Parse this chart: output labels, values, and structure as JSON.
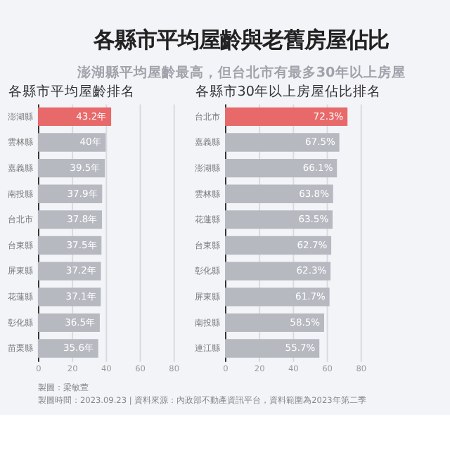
{
  "chart_data": [
    {
      "type": "other",
      "title": "各縣市平均屋齡與老舊房屋佔比",
      "subtitle": "澎湖縣平均屋齡最高，但台北市有最多30年以上房屋",
      "annotations": [
        "製圖：梁敏萱",
        "製圖時間：2023.09.23 | 資料來源：內政部不動產資訊平台，資料範圍為2023年第二季"
      ]
    },
    {
      "type": "bar",
      "orientation": "horizontal",
      "title": "各縣市平均屋齡排名",
      "categories": [
        "澎湖縣",
        "雲林縣",
        "嘉義縣",
        "南投縣",
        "台北市",
        "台東縣",
        "屏東縣",
        "花蓮縣",
        "彰化縣",
        "苗栗縣"
      ],
      "values": [
        43.2,
        40,
        39.5,
        37.9,
        37.8,
        37.5,
        37.2,
        37.1,
        36.5,
        35.6
      ],
      "value_labels": [
        "43.2年",
        "40年",
        "39.5年",
        "37.9年",
        "37.8年",
        "37.5年",
        "37.2年",
        "37.1年",
        "36.5年",
        "35.6年"
      ],
      "colors": [
        "#e8696a",
        "#b7b9c1",
        "#b7b9c1",
        "#b7b9c1",
        "#b7b9c1",
        "#b7b9c1",
        "#b7b9c1",
        "#b7b9c1",
        "#b7b9c1",
        "#b7b9c1"
      ],
      "xlim": [
        0,
        80
      ],
      "xticks": [
        0,
        20,
        40,
        60,
        80
      ],
      "grid": "x"
    },
    {
      "type": "bar",
      "orientation": "horizontal",
      "title": "各縣市30年以上房屋佔比排名",
      "categories": [
        "台北市",
        "嘉義縣",
        "澎湖縣",
        "雲林縣",
        "花蓮縣",
        "台東縣",
        "彰化縣",
        "屏東縣",
        "南投縣",
        "連江縣"
      ],
      "values": [
        72.3,
        67.5,
        66.1,
        63.8,
        63.5,
        62.7,
        62.3,
        61.7,
        58.5,
        55.7
      ],
      "value_labels": [
        "72.3%",
        "67.5%",
        "66.1%",
        "63.8%",
        "63.5%",
        "62.7%",
        "62.3%",
        "61.7%",
        "58.5%",
        "55.7%"
      ],
      "colors": [
        "#e8696a",
        "#b7b9c1",
        "#b7b9c1",
        "#b7b9c1",
        "#b7b9c1",
        "#b7b9c1",
        "#b7b9c1",
        "#b7b9c1",
        "#b7b9c1",
        "#b7b9c1"
      ],
      "xlim": [
        0,
        80
      ],
      "xticks": [
        0,
        20,
        40,
        60,
        80
      ],
      "grid": "x"
    }
  ]
}
